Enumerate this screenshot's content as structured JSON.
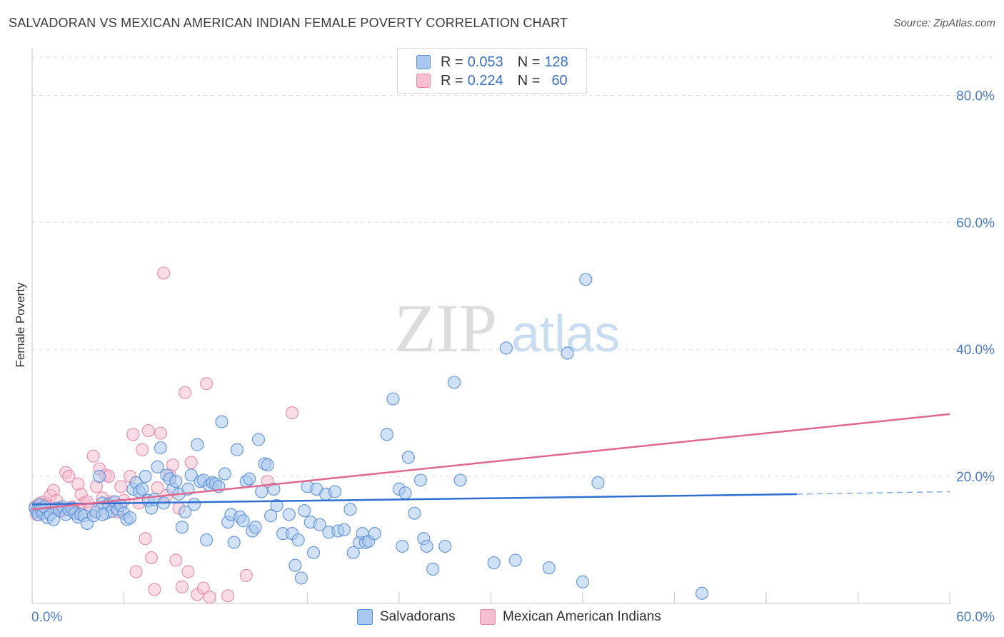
{
  "title": "SALVADORAN VS MEXICAN AMERICAN INDIAN FEMALE POVERTY CORRELATION CHART",
  "source": "Source: ZipAtlas.com",
  "watermark": {
    "zip": "ZIP",
    "atlas": "atlas"
  },
  "colors": {
    "blue_fill": "#a9c8ef",
    "blue_stroke": "#5b8fd6",
    "blue_line": "#2f6fcf",
    "pink_fill": "#f6bfd0",
    "pink_stroke": "#e58aa8",
    "pink_line": "#e0688f",
    "grid": "#dddddd",
    "axis_text": "#4a7cc4"
  },
  "legend": {
    "rows": [
      {
        "r_label": "R =",
        "r_value": "0.053",
        "n_label": "N =",
        "n_value": "128"
      },
      {
        "r_label": "R =",
        "r_value": "0.224",
        "n_label": "N =",
        "n_value": "60"
      }
    ]
  },
  "bottom_legend": {
    "series1": "Salvadorans",
    "series2": "Mexican American Indians"
  },
  "chart_data": {
    "type": "scatter",
    "title": "SALVADORAN VS MEXICAN AMERICAN INDIAN FEMALE POVERTY CORRELATION CHART",
    "xlabel": "",
    "ylabel": "Female Poverty",
    "xlim": [
      0,
      60
    ],
    "ylim": [
      0,
      86
    ],
    "x_tick_labels": [
      "0.0%",
      "60.0%"
    ],
    "y_ticks": [
      20,
      40,
      60,
      80
    ],
    "y_tick_labels": [
      "20.0%",
      "40.0%",
      "60.0%",
      "80.0%"
    ],
    "grid": true,
    "legend_position": "top-center",
    "series": [
      {
        "name": "Salvadorans",
        "r": 0.053,
        "n": 128,
        "trend": {
          "x0": 0,
          "y0": 15.6,
          "x1": 50,
          "y1": 17.2,
          "dashed_to_x": 60,
          "dashed_to_y": 17.6
        },
        "points": [
          [
            0.2,
            15.0
          ],
          [
            0.3,
            14.5
          ],
          [
            0.4,
            14.0
          ],
          [
            0.5,
            15.5
          ],
          [
            0.6,
            14.8
          ],
          [
            0.7,
            14.2
          ],
          [
            0.8,
            15.2
          ],
          [
            1.0,
            13.5
          ],
          [
            1.2,
            14.0
          ],
          [
            1.4,
            13.2
          ],
          [
            1.6,
            15.0
          ],
          [
            1.8,
            14.6
          ],
          [
            2.0,
            15.2
          ],
          [
            2.2,
            14.0
          ],
          [
            2.4,
            14.8
          ],
          [
            2.6,
            15.0
          ],
          [
            2.8,
            14.2
          ],
          [
            3.0,
            13.6
          ],
          [
            3.2,
            14.0
          ],
          [
            3.4,
            13.8
          ],
          [
            3.6,
            12.6
          ],
          [
            4.0,
            13.8
          ],
          [
            4.2,
            14.4
          ],
          [
            4.4,
            20.0
          ],
          [
            4.6,
            15.8
          ],
          [
            4.8,
            14.2
          ],
          [
            5.0,
            15.6
          ],
          [
            5.2,
            14.5
          ],
          [
            5.4,
            16.0
          ],
          [
            5.6,
            14.8
          ],
          [
            5.8,
            15.4
          ],
          [
            6.0,
            14.2
          ],
          [
            6.2,
            13.2
          ],
          [
            6.4,
            13.5
          ],
          [
            6.6,
            18.0
          ],
          [
            6.8,
            19.0
          ],
          [
            7.0,
            17.6
          ],
          [
            7.2,
            18.0
          ],
          [
            7.4,
            20.0
          ],
          [
            7.6,
            16.2
          ],
          [
            7.8,
            15.0
          ],
          [
            8.0,
            16.4
          ],
          [
            8.2,
            21.5
          ],
          [
            8.4,
            24.5
          ],
          [
            8.6,
            15.8
          ],
          [
            8.8,
            20.2
          ],
          [
            9.0,
            19.6
          ],
          [
            9.2,
            18.0
          ],
          [
            9.4,
            19.2
          ],
          [
            9.6,
            17.2
          ],
          [
            9.8,
            12.0
          ],
          [
            10.0,
            14.4
          ],
          [
            10.2,
            18.0
          ],
          [
            10.4,
            20.2
          ],
          [
            10.6,
            15.6
          ],
          [
            10.8,
            25.0
          ],
          [
            11.0,
            19.2
          ],
          [
            11.2,
            19.4
          ],
          [
            11.4,
            10.0
          ],
          [
            11.6,
            18.6
          ],
          [
            11.8,
            19.0
          ],
          [
            12.0,
            18.8
          ],
          [
            12.2,
            18.4
          ],
          [
            12.4,
            28.6
          ],
          [
            12.6,
            20.4
          ],
          [
            12.8,
            12.8
          ],
          [
            13.0,
            14.0
          ],
          [
            13.2,
            9.6
          ],
          [
            13.4,
            24.2
          ],
          [
            13.6,
            13.6
          ],
          [
            13.8,
            13.0
          ],
          [
            14.0,
            19.2
          ],
          [
            14.2,
            19.6
          ],
          [
            14.4,
            11.4
          ],
          [
            14.6,
            12.0
          ],
          [
            14.8,
            25.8
          ],
          [
            15.0,
            17.6
          ],
          [
            15.2,
            22.0
          ],
          [
            15.4,
            21.8
          ],
          [
            15.6,
            13.8
          ],
          [
            15.8,
            18.0
          ],
          [
            16.0,
            15.4
          ],
          [
            16.4,
            11.0
          ],
          [
            16.8,
            14.0
          ],
          [
            17.0,
            11.0
          ],
          [
            17.2,
            6.0
          ],
          [
            17.4,
            10.0
          ],
          [
            17.6,
            4.0
          ],
          [
            17.8,
            14.6
          ],
          [
            18.0,
            18.4
          ],
          [
            18.2,
            12.8
          ],
          [
            18.4,
            8.0
          ],
          [
            18.6,
            18.0
          ],
          [
            18.8,
            12.4
          ],
          [
            19.2,
            17.2
          ],
          [
            19.4,
            11.2
          ],
          [
            19.8,
            17.6
          ],
          [
            20.0,
            11.4
          ],
          [
            20.4,
            11.6
          ],
          [
            20.8,
            14.8
          ],
          [
            21.0,
            8.0
          ],
          [
            21.4,
            9.6
          ],
          [
            21.6,
            11.0
          ],
          [
            21.8,
            9.6
          ],
          [
            22.0,
            9.8
          ],
          [
            22.4,
            11.0
          ],
          [
            23.2,
            26.6
          ],
          [
            23.6,
            32.2
          ],
          [
            24.0,
            18.0
          ],
          [
            24.2,
            9.0
          ],
          [
            24.4,
            17.4
          ],
          [
            24.6,
            23.0
          ],
          [
            25.0,
            14.2
          ],
          [
            25.4,
            19.4
          ],
          [
            25.6,
            10.2
          ],
          [
            25.8,
            9.0
          ],
          [
            26.2,
            5.4
          ],
          [
            27.0,
            9.0
          ],
          [
            27.6,
            34.8
          ],
          [
            28.0,
            19.4
          ],
          [
            30.2,
            6.4
          ],
          [
            31.0,
            40.2
          ],
          [
            31.6,
            6.8
          ],
          [
            33.8,
            5.6
          ],
          [
            35.0,
            39.4
          ],
          [
            36.0,
            3.4
          ],
          [
            36.2,
            51.0
          ],
          [
            37.0,
            19.0
          ],
          [
            43.8,
            1.6
          ],
          [
            4.6,
            14.0
          ]
        ]
      },
      {
        "name": "Mexican American Indians",
        "r": 0.224,
        "n": 60,
        "trend": {
          "x0": 0,
          "y0": 14.8,
          "x1": 60,
          "y1": 29.8
        },
        "points": [
          [
            0.2,
            15.2
          ],
          [
            0.3,
            14.0
          ],
          [
            0.5,
            15.8
          ],
          [
            0.6,
            15.0
          ],
          [
            0.8,
            16.0
          ],
          [
            1.0,
            15.6
          ],
          [
            1.2,
            17.0
          ],
          [
            1.4,
            17.8
          ],
          [
            1.6,
            16.2
          ],
          [
            1.8,
            15.0
          ],
          [
            2.0,
            14.6
          ],
          [
            2.2,
            20.6
          ],
          [
            2.4,
            20.0
          ],
          [
            2.6,
            15.2
          ],
          [
            2.8,
            14.4
          ],
          [
            3.0,
            18.8
          ],
          [
            3.2,
            17.2
          ],
          [
            3.4,
            15.8
          ],
          [
            3.6,
            16.0
          ],
          [
            3.8,
            14.8
          ],
          [
            4.0,
            23.2
          ],
          [
            4.2,
            18.4
          ],
          [
            4.4,
            21.2
          ],
          [
            4.6,
            16.6
          ],
          [
            4.8,
            20.2
          ],
          [
            5.0,
            20.0
          ],
          [
            5.2,
            16.0
          ],
          [
            5.4,
            15.2
          ],
          [
            5.6,
            14.4
          ],
          [
            5.8,
            18.4
          ],
          [
            6.0,
            16.2
          ],
          [
            6.4,
            20.0
          ],
          [
            6.6,
            26.6
          ],
          [
            6.8,
            5.0
          ],
          [
            7.0,
            15.8
          ],
          [
            7.2,
            24.2
          ],
          [
            7.4,
            10.2
          ],
          [
            7.6,
            27.2
          ],
          [
            7.8,
            7.2
          ],
          [
            8.0,
            2.2
          ],
          [
            8.2,
            18.2
          ],
          [
            8.4,
            26.8
          ],
          [
            8.6,
            52.0
          ],
          [
            8.8,
            17.0
          ],
          [
            9.0,
            20.2
          ],
          [
            9.2,
            21.8
          ],
          [
            9.4,
            6.8
          ],
          [
            9.6,
            15.0
          ],
          [
            9.8,
            2.6
          ],
          [
            10.0,
            33.2
          ],
          [
            10.2,
            5.0
          ],
          [
            10.4,
            22.2
          ],
          [
            10.8,
            1.4
          ],
          [
            11.2,
            2.4
          ],
          [
            11.4,
            34.6
          ],
          [
            11.6,
            1.0
          ],
          [
            12.8,
            1.2
          ],
          [
            14.0,
            4.4
          ],
          [
            15.4,
            19.2
          ],
          [
            17.0,
            30.0
          ]
        ]
      }
    ]
  }
}
